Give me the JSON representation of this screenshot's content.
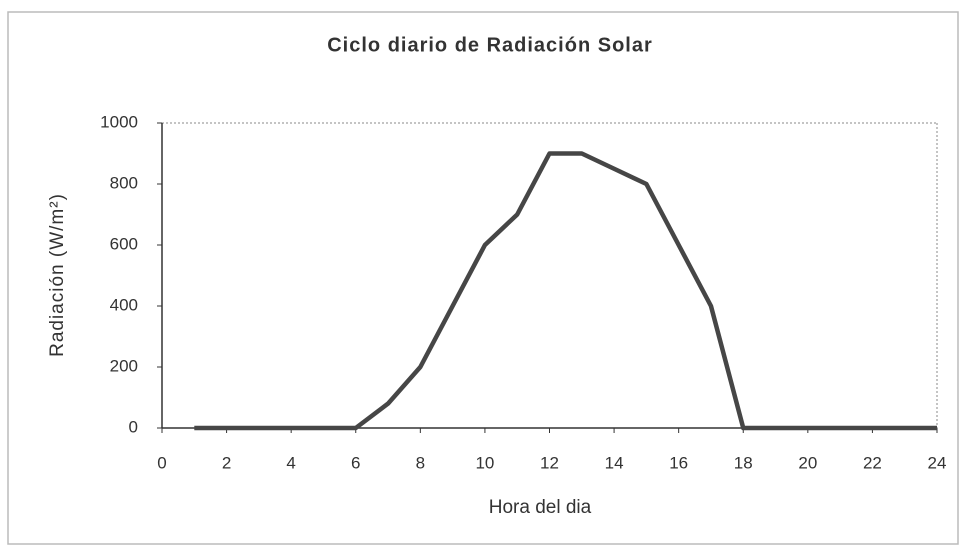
{
  "chart_data": {
    "type": "line",
    "title": "Ciclo diario de Radiación Solar",
    "x_label": "Hora del dia",
    "y_label": "Radiación (W/m²)",
    "x": [
      1,
      2,
      3,
      4,
      5,
      6,
      7,
      8,
      9,
      10,
      11,
      12,
      13,
      14,
      15,
      16,
      17,
      18,
      19,
      20,
      21,
      22,
      23,
      24
    ],
    "series": [
      {
        "color": "#464646",
        "values": [
          0,
          0,
          0,
          0,
          0,
          0,
          80,
          200,
          400,
          600,
          700,
          900,
          900,
          850,
          800,
          600,
          400,
          0,
          0,
          0,
          0,
          0,
          0,
          0
        ]
      }
    ],
    "xlim": [
      0,
      24
    ],
    "xticks": [
      0,
      2,
      4,
      6,
      8,
      10,
      12,
      14,
      16,
      18,
      20,
      22,
      24
    ],
    "ylim": [
      0,
      1000
    ],
    "yticks": [
      0,
      200,
      400,
      600,
      800,
      1000
    ],
    "grid": false
  }
}
